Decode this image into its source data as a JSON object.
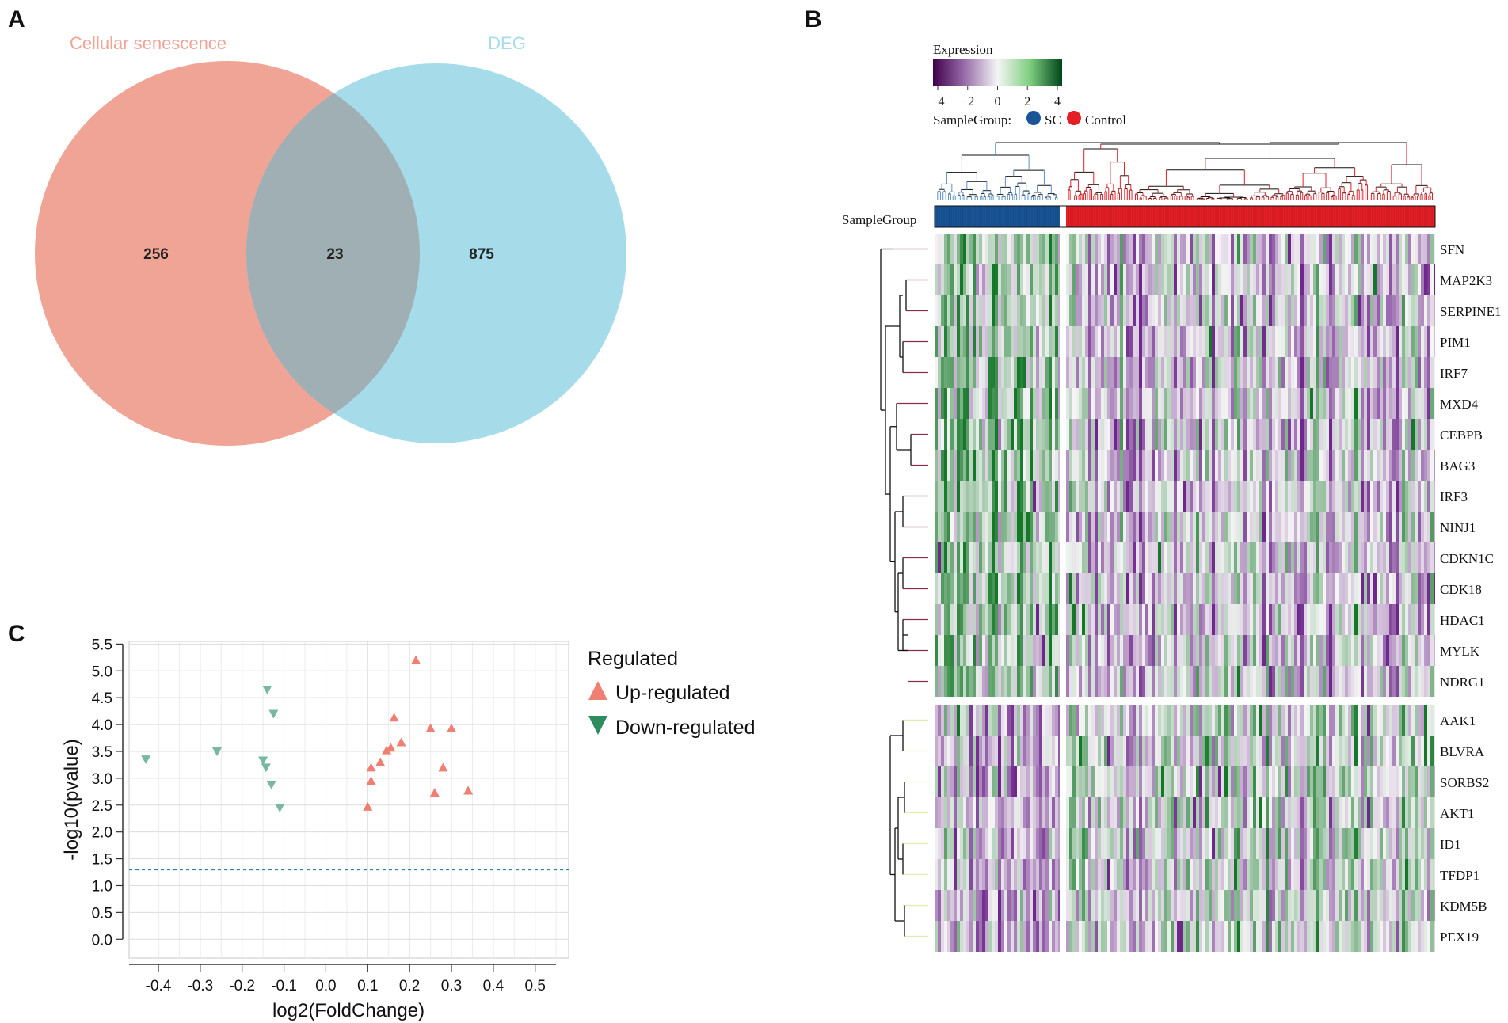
{
  "panels": {
    "a": "A",
    "b": "B",
    "c": "C"
  },
  "colors": {
    "senescence": "#f0a496",
    "deg": "#a6dce9",
    "overlap": "#9fafb4",
    "up": "#ee7f72",
    "down": "#76b8a0",
    "sc": "#1a5597",
    "control": "#e41f26",
    "threshold": "#2b7fa8",
    "branch_top": "#8c2b4a",
    "branch_bottom": "#ddeeb0"
  },
  "venn": {
    "set_a_label": "Cellular senescence",
    "set_b_label": "DEG",
    "only_a": "256",
    "both": "23",
    "only_b": "875"
  },
  "heatmap": {
    "legend_title": "Expression",
    "legend_ticks": [
      "−4",
      "−2",
      "0",
      "2",
      "4"
    ],
    "legend_range": [
      -4,
      4
    ],
    "group_legend_label": "SampleGroup:",
    "group_sc": "SC",
    "group_control": "Control",
    "group_bar_label": "SampleGroup",
    "cluster1_genes": [
      "SFN",
      "MAP2K3",
      "SERPINE1",
      "PIM1",
      "IRF7",
      "MXD4",
      "CEBPB",
      "BAG3",
      "IRF3",
      "NINJ1",
      "CDKN1C",
      "CDK18",
      "HDAC1",
      "MYLK",
      "NDRG1"
    ],
    "cluster2_genes": [
      "AAK1",
      "BLVRA",
      "SORBS2",
      "AKT1",
      "ID1",
      "TFDP1",
      "KDM5B",
      "PEX19"
    ]
  },
  "chart_data": {
    "type": "scatter",
    "xlabel": "log2(FoldChange)",
    "ylabel": "-log10(pvalue)",
    "xticks": [
      "-0.4",
      "-0.3",
      "-0.2",
      "-0.1",
      "0.0",
      "0.1",
      "0.2",
      "0.3",
      "0.4",
      "0.5"
    ],
    "yticks": [
      "0.0",
      "0.5",
      "1.0",
      "1.5",
      "2.0",
      "2.5",
      "3.0",
      "3.5",
      "4.0",
      "4.5",
      "5.0",
      "5.5"
    ],
    "xlim": [
      -0.47,
      0.58
    ],
    "ylim": [
      -0.35,
      5.55
    ],
    "threshold_y": 1.3,
    "legend_title": "Regulated",
    "series": [
      {
        "name": "Up-regulated",
        "points": [
          [
            0.215,
            5.2
          ],
          [
            0.163,
            4.13
          ],
          [
            0.25,
            3.93
          ],
          [
            0.3,
            3.93
          ],
          [
            0.18,
            3.67
          ],
          [
            0.155,
            3.57
          ],
          [
            0.145,
            3.52
          ],
          [
            0.13,
            3.3
          ],
          [
            0.108,
            3.2
          ],
          [
            0.28,
            3.2
          ],
          [
            0.108,
            2.95
          ],
          [
            0.34,
            2.77
          ],
          [
            0.26,
            2.73
          ],
          [
            0.1,
            2.47
          ]
        ]
      },
      {
        "name": "Down-regulated",
        "points": [
          [
            -0.14,
            4.65
          ],
          [
            -0.125,
            4.2
          ],
          [
            -0.26,
            3.5
          ],
          [
            -0.43,
            3.35
          ],
          [
            -0.15,
            3.33
          ],
          [
            -0.143,
            3.2
          ],
          [
            -0.13,
            2.88
          ],
          [
            -0.11,
            2.45
          ]
        ]
      }
    ]
  }
}
